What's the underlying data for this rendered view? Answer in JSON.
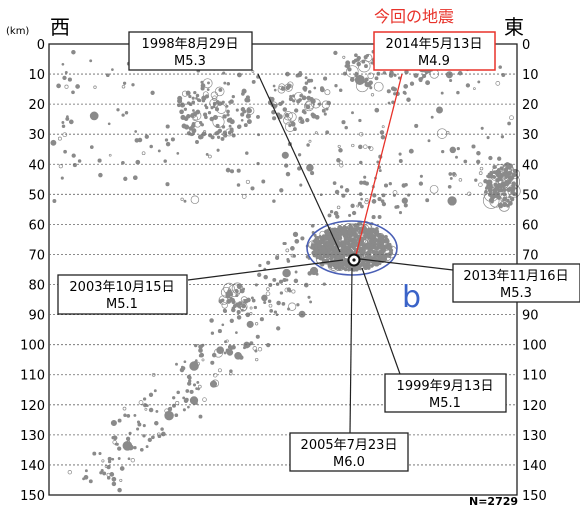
{
  "chart_data": {
    "type": "scatter",
    "ylim": [
      0,
      150
    ],
    "y_unit": "(km)",
    "yticks": [
      0,
      10,
      20,
      30,
      40,
      50,
      60,
      70,
      80,
      90,
      100,
      110,
      120,
      130,
      140,
      150
    ],
    "grid": true,
    "west_label": "西",
    "east_label": "東",
    "current_quake_label": "今回の地震",
    "cluster_label": "b",
    "count_label": "N=2729",
    "colors": {
      "current": "#e8322a",
      "cluster_ellipse": "#4a5fb5",
      "cluster_label": "#3a63c8",
      "points": "#8a8a8a"
    },
    "annotations": [
      {
        "date": "2014年5月13日",
        "magnitude": "M4.9",
        "depth": 72,
        "current": true
      },
      {
        "date": "1998年8月29日",
        "magnitude": "M5.3",
        "depth": 67
      },
      {
        "date": "2003年10月15日",
        "magnitude": "M5.1",
        "depth": 73
      },
      {
        "date": "2013年11月16日",
        "magnitude": "M5.3",
        "depth": 73
      },
      {
        "date": "1999年9月13日",
        "magnitude": "M5.1",
        "depth": 75
      },
      {
        "date": "2005年7月23日",
        "magnitude": "M6.0",
        "depth": 75
      }
    ]
  }
}
